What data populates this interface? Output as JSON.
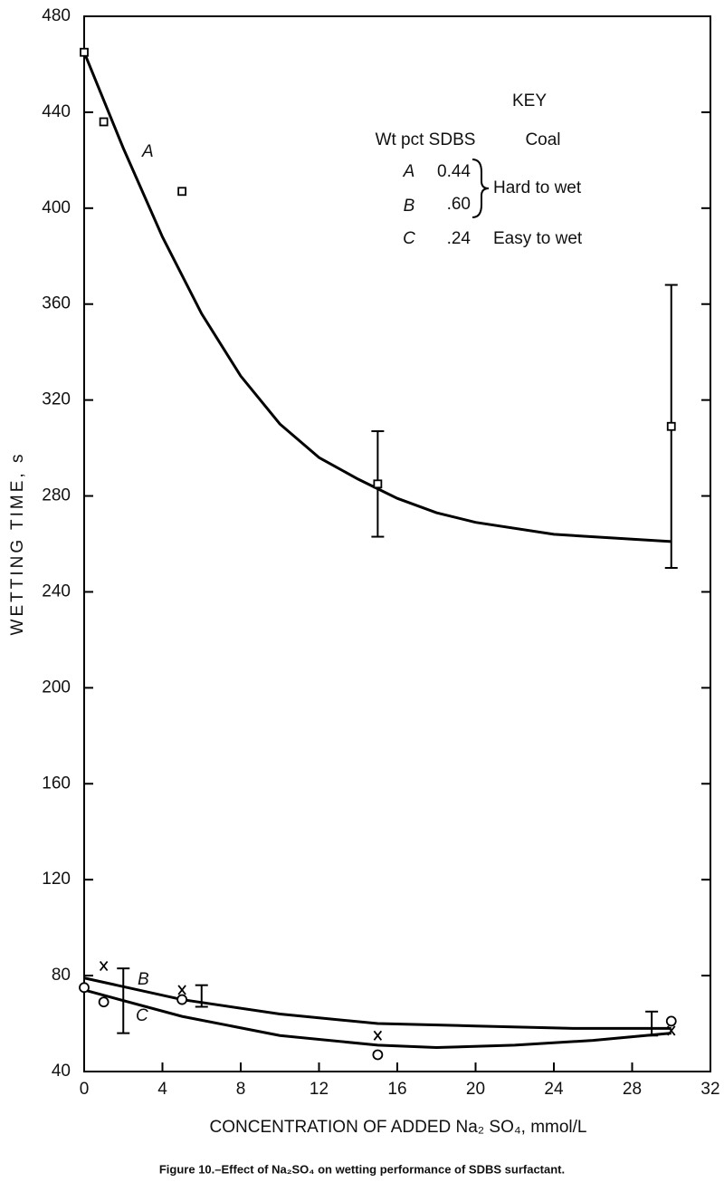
{
  "chart_data": {
    "type": "line",
    "y_label": "WETTING TIME, s",
    "x_label": "CONCENTRATION OF ADDED Na₂ SO₄, mmol/L",
    "caption": "Figure 10.–Effect of Na₂SO₄ on wetting performance of SDBS surfactant.",
    "xlim": [
      0,
      32
    ],
    "xticks": [
      0,
      4,
      8,
      12,
      16,
      20,
      24,
      28,
      32
    ],
    "ylim": [
      40,
      480
    ],
    "yticks": [
      40,
      80,
      120,
      160,
      200,
      240,
      280,
      320,
      360,
      400,
      440,
      480
    ],
    "series": [
      {
        "name": "A",
        "color": "#000000",
        "marker": "square",
        "x": [
          0,
          1,
          5,
          15,
          30
        ],
        "values": [
          465,
          436,
          407,
          285,
          309
        ],
        "curve": {
          "x": [
            0,
            2,
            4,
            6,
            8,
            10,
            12,
            14,
            16,
            18,
            20,
            24,
            28,
            30
          ],
          "values": [
            465,
            425,
            388,
            356,
            330,
            310,
            296,
            287,
            279,
            273,
            269,
            264,
            262,
            261
          ]
        },
        "error_bars": [
          {
            "x": 15,
            "low": 263,
            "high": 307
          },
          {
            "x": 30,
            "low": 250,
            "high": 368
          }
        ]
      },
      {
        "name": "B",
        "color": "#000000",
        "marker": "x",
        "x": [
          1,
          5,
          15,
          30
        ],
        "values": [
          84,
          74,
          55,
          57
        ],
        "curve": {
          "x": [
            0,
            5,
            10,
            15,
            20,
            25,
            30
          ],
          "values": [
            79,
            70,
            64,
            60,
            59,
            58,
            58
          ]
        },
        "error_bars": [
          {
            "x": 2,
            "low": 56,
            "high": 83
          },
          {
            "x": 6,
            "low": 67,
            "high": 76
          },
          {
            "x": 29,
            "low": 55,
            "high": 65
          }
        ]
      },
      {
        "name": "C",
        "color": "#000000",
        "marker": "circle",
        "x": [
          0,
          1,
          5,
          15,
          30
        ],
        "values": [
          75,
          69,
          70,
          47,
          61
        ],
        "curve": {
          "x": [
            0,
            5,
            10,
            15,
            18,
            22,
            26,
            30
          ],
          "values": [
            74,
            63,
            55,
            51,
            50,
            51,
            53,
            56
          ]
        },
        "error_bars": []
      }
    ],
    "key": {
      "title": "KEY",
      "headers": [
        "Wt pct SDBS",
        "Coal"
      ],
      "sdbs": [
        "0.44",
        ".60",
        ".24"
      ],
      "coal": [
        "Hard to wet",
        "Easy to wet"
      ]
    }
  }
}
